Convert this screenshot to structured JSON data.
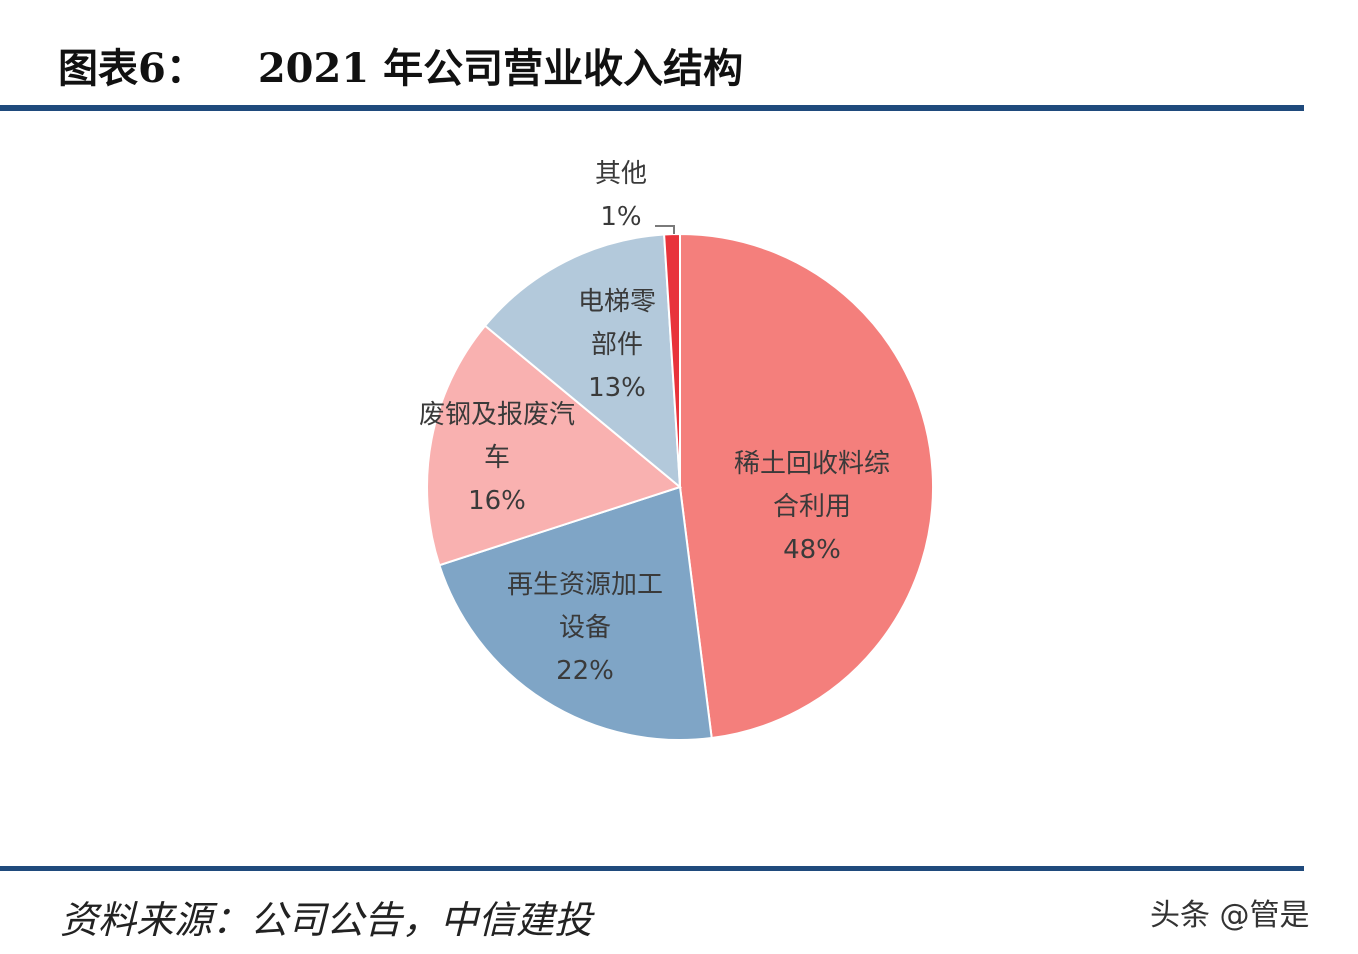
{
  "header": {
    "figure_number": "图表6：",
    "title": "2021 年公司营业收入结构"
  },
  "chart_data": {
    "type": "pie",
    "title": "2021 年公司营业收入结构",
    "start_angle_deg": 0,
    "direction": "clockwise",
    "slices": [
      {
        "label_lines": [
          "稀土回收料综",
          "合利用"
        ],
        "value": 48,
        "value_label": "48%",
        "color": "#f47f7c"
      },
      {
        "label_lines": [
          "再生资源加工",
          "设备"
        ],
        "value": 22,
        "value_label": "22%",
        "color": "#7fa5c6"
      },
      {
        "label_lines": [
          "废钢及报废汽",
          "车"
        ],
        "value": 16,
        "value_label": "16%",
        "color": "#f9b1b0"
      },
      {
        "label_lines": [
          "电梯零",
          "部件"
        ],
        "value": 13,
        "value_label": "13%",
        "color": "#b3c9db"
      },
      {
        "label_lines": [
          "其他"
        ],
        "value": 1,
        "value_label": "1%",
        "color": "#e8333b"
      }
    ]
  },
  "footer": {
    "source": "资料来源：公司公告，中信建投",
    "watermark": "头条 @管是"
  }
}
